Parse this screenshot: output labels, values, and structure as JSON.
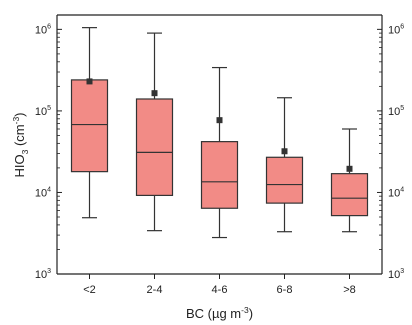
{
  "chart_data": {
    "type": "box",
    "xlabel": {
      "main": "BC (µg m",
      "sup": "-3",
      "close": ")"
    },
    "ylabel": {
      "main": "HIO",
      "sub": "3",
      "mid": " (cm",
      "sup": "-3",
      "close": ")"
    },
    "yscale": "log",
    "ylim": [
      1000,
      1500000
    ],
    "y_ticks": [
      {
        "value": 1000,
        "base": "10",
        "exp": "3"
      },
      {
        "value": 10000,
        "base": "10",
        "exp": "4"
      },
      {
        "value": 100000,
        "base": "10",
        "exp": "5"
      },
      {
        "value": 1000000,
        "base": "10",
        "exp": "6"
      }
    ],
    "right_axis_mirror": true,
    "box_color": "#f28b86",
    "categories": [
      "<2",
      "2-4",
      "4-6",
      "6-8",
      ">8"
    ],
    "boxes": [
      {
        "whisker_low": 4900,
        "q1": 18000,
        "median": 68000,
        "q3": 240000,
        "whisker_high": 1050000,
        "mean": 230000
      },
      {
        "whisker_low": 3400,
        "q1": 9200,
        "median": 31000,
        "q3": 140000,
        "whisker_high": 900000,
        "mean": 165000
      },
      {
        "whisker_low": 2800,
        "q1": 6400,
        "median": 13500,
        "q3": 42000,
        "whisker_high": 340000,
        "mean": 77000
      },
      {
        "whisker_low": 3300,
        "q1": 7400,
        "median": 12500,
        "q3": 27000,
        "whisker_high": 145000,
        "mean": 32000
      },
      {
        "whisker_low": 3300,
        "q1": 5200,
        "median": 8500,
        "q3": 17000,
        "whisker_high": 60000,
        "mean": 19500
      }
    ]
  }
}
